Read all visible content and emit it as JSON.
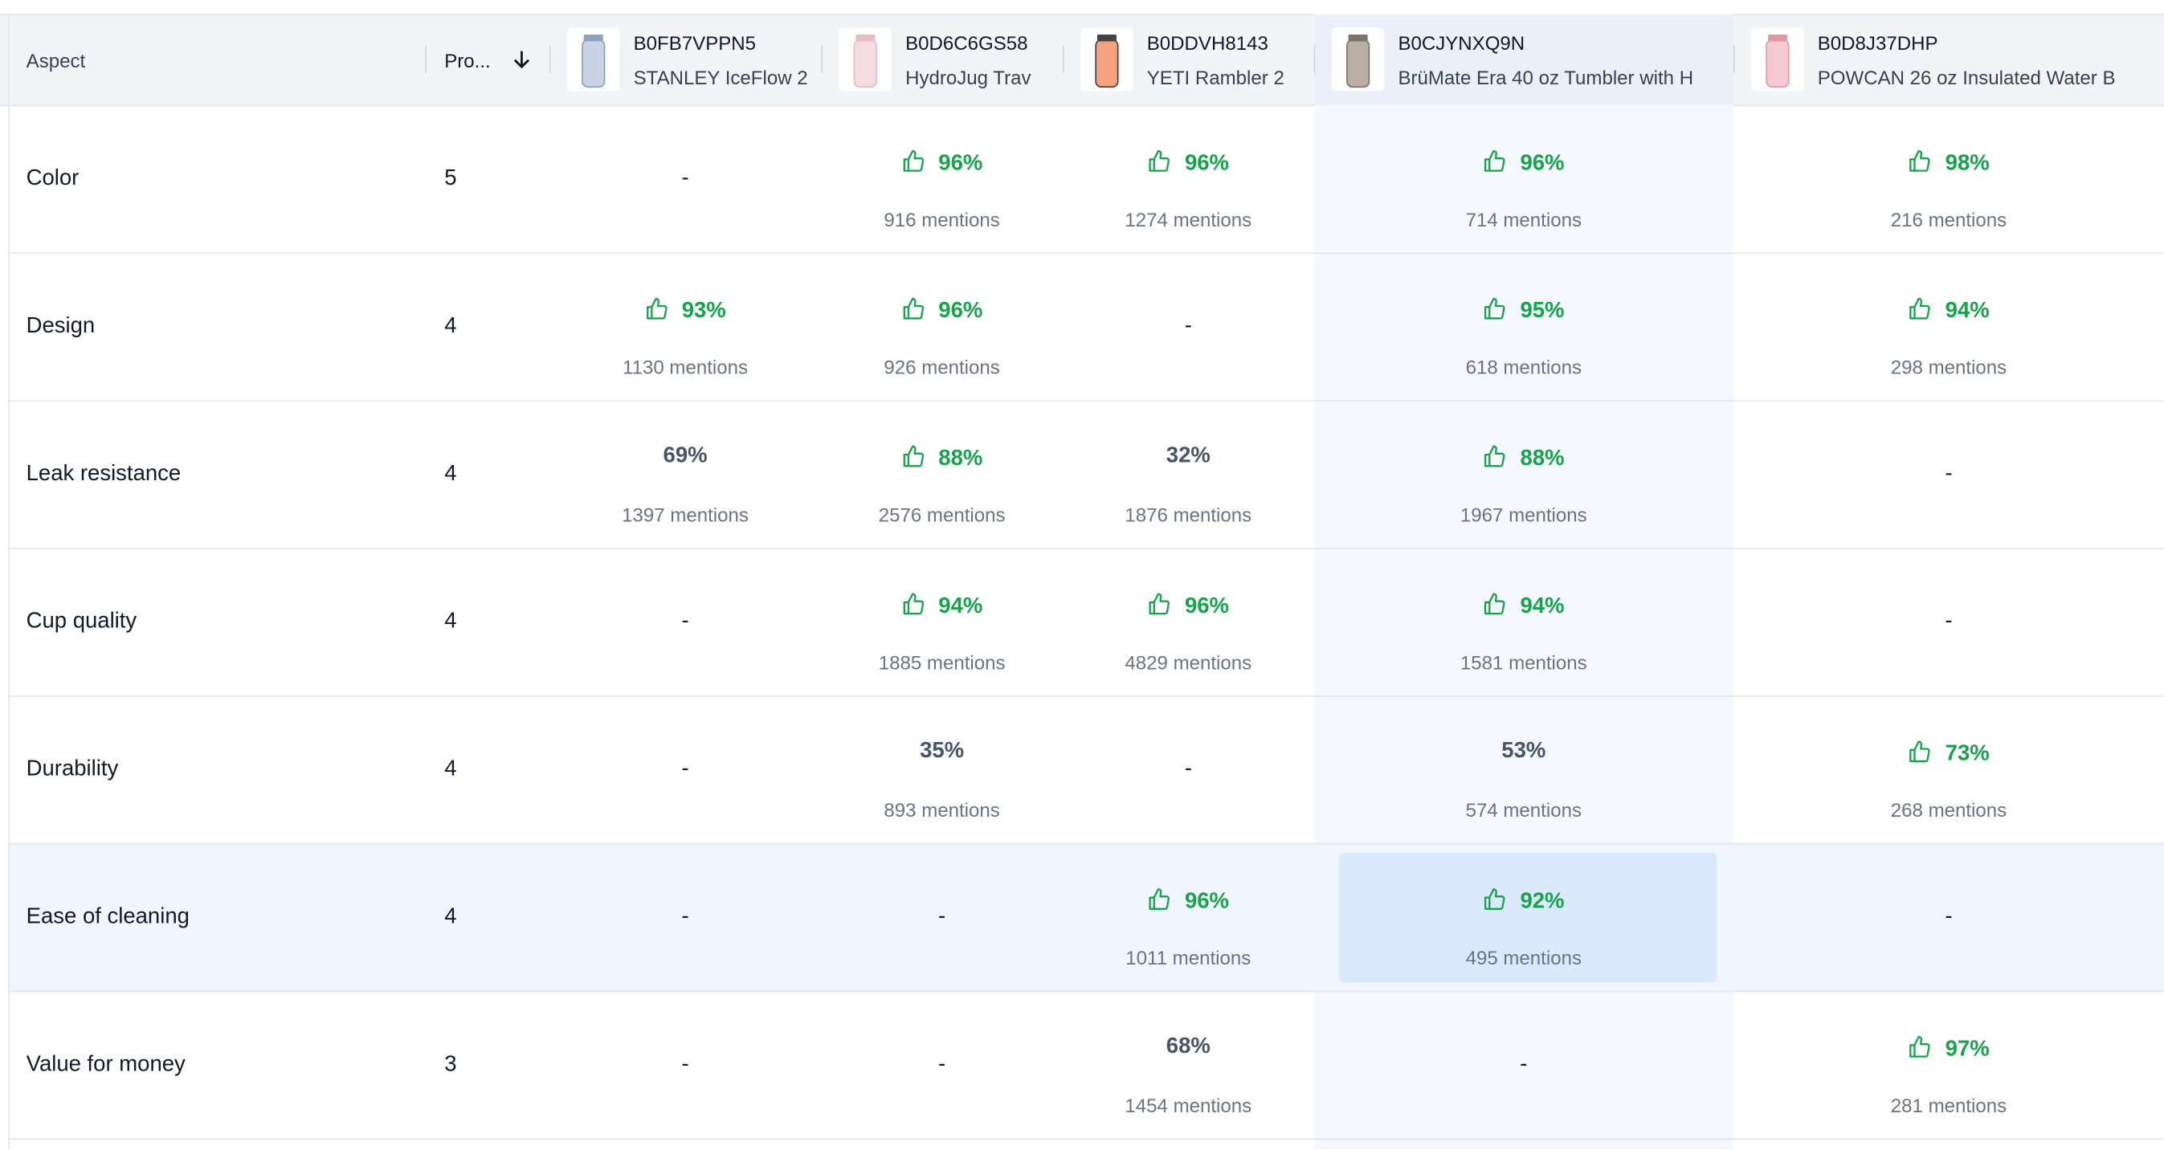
{
  "table": {
    "header": {
      "aspect": "Aspect",
      "count": "Pro...",
      "products": [
        {
          "asin": "B0FB7VPPN5",
          "name": "STANLEY IceFlow 2"
        },
        {
          "asin": "B0D6C6GS58",
          "name": "HydroJug Trav"
        },
        {
          "asin": "B0DDVH8143",
          "name": "YETI Rambler 2"
        },
        {
          "asin": "B0CJYNXQ9N",
          "name": "BrüMate Era 40 oz Tumbler with H"
        },
        {
          "asin": "B0D8J37DHP",
          "name": "POWCAN 26 oz Insulated Water B"
        }
      ]
    },
    "highlight_column": 3,
    "highlight_row": 5,
    "rows": [
      {
        "aspect": "Color",
        "count": "5",
        "cells": [
          "-",
          {
            "pct": "96%",
            "mentions": "916 mentions",
            "positive": true
          },
          {
            "pct": "96%",
            "mentions": "1274 mentions",
            "positive": true
          },
          {
            "pct": "96%",
            "mentions": "714 mentions",
            "positive": true
          },
          {
            "pct": "98%",
            "mentions": "216 mentions",
            "positive": true
          }
        ]
      },
      {
        "aspect": "Design",
        "count": "4",
        "cells": [
          {
            "pct": "93%",
            "mentions": "1130 mentions",
            "positive": true
          },
          {
            "pct": "96%",
            "mentions": "926 mentions",
            "positive": true
          },
          "-",
          {
            "pct": "95%",
            "mentions": "618 mentions",
            "positive": true
          },
          {
            "pct": "94%",
            "mentions": "298 mentions",
            "positive": true
          }
        ]
      },
      {
        "aspect": "Leak resistance",
        "count": "4",
        "cells": [
          {
            "pct": "69%",
            "mentions": "1397 mentions",
            "positive": false
          },
          {
            "pct": "88%",
            "mentions": "2576 mentions",
            "positive": true
          },
          {
            "pct": "32%",
            "mentions": "1876 mentions",
            "positive": false
          },
          {
            "pct": "88%",
            "mentions": "1967 mentions",
            "positive": true
          },
          "-"
        ]
      },
      {
        "aspect": "Cup quality",
        "count": "4",
        "cells": [
          "-",
          {
            "pct": "94%",
            "mentions": "1885 mentions",
            "positive": true
          },
          {
            "pct": "96%",
            "mentions": "4829 mentions",
            "positive": true
          },
          {
            "pct": "94%",
            "mentions": "1581 mentions",
            "positive": true
          },
          "-"
        ]
      },
      {
        "aspect": "Durability",
        "count": "4",
        "cells": [
          "-",
          {
            "pct": "35%",
            "mentions": "893 mentions",
            "positive": false
          },
          "-",
          {
            "pct": "53%",
            "mentions": "574 mentions",
            "positive": false
          },
          {
            "pct": "73%",
            "mentions": "268 mentions",
            "positive": true
          }
        ]
      },
      {
        "aspect": "Ease of cleaning",
        "count": "4",
        "cells": [
          "-",
          "-",
          {
            "pct": "96%",
            "mentions": "1011 mentions",
            "positive": true
          },
          {
            "pct": "92%",
            "mentions": "495 mentions",
            "positive": true
          },
          "-"
        ]
      },
      {
        "aspect": "Value for money",
        "count": "3",
        "cells": [
          "-",
          "-",
          {
            "pct": "68%",
            "mentions": "1454 mentions",
            "positive": false
          },
          "-",
          {
            "pct": "97%",
            "mentions": "281 mentions",
            "positive": true
          }
        ]
      }
    ]
  }
}
